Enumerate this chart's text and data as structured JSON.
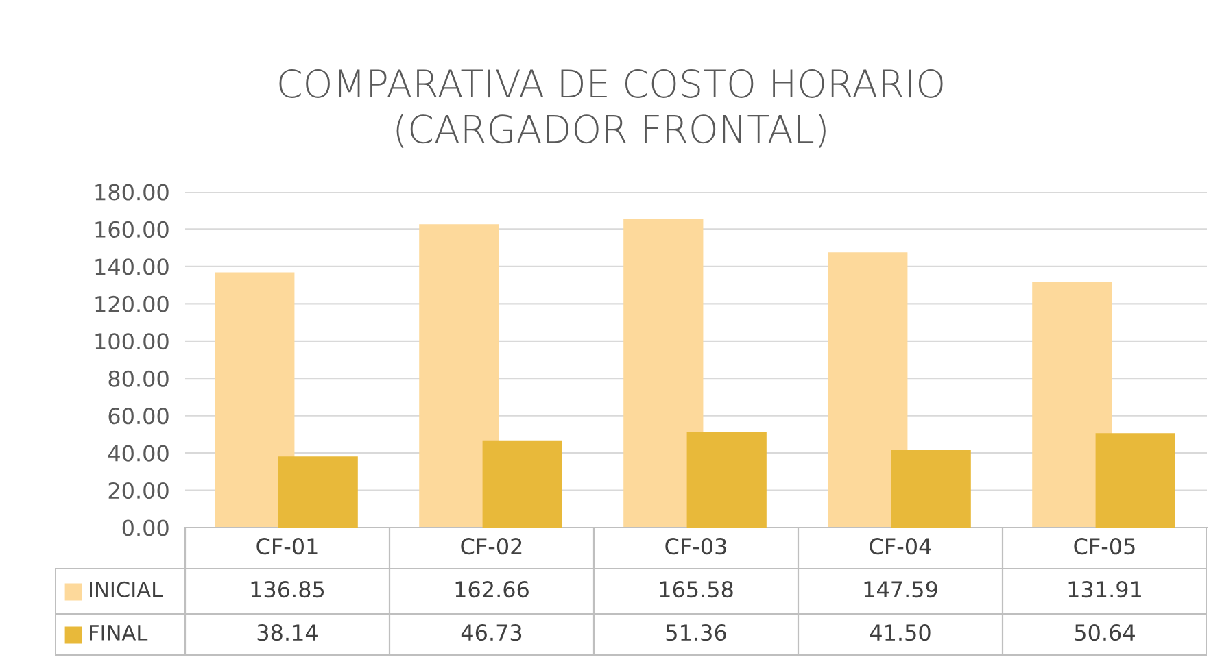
{
  "chart_data": {
    "type": "bar",
    "title": "COMPARATIVA DE COSTO HORARIO\n(CARGADOR FRONTAL)",
    "categories": [
      "CF-01",
      "CF-02",
      "CF-03",
      "CF-04",
      "CF-05"
    ],
    "series": [
      {
        "name": "INICIAL",
        "color": "#fdd99b",
        "values": [
          136.85,
          162.66,
          165.58,
          147.59,
          131.91
        ],
        "value_labels": [
          "136.85",
          "162.66",
          "165.58",
          "147.59",
          "131.91"
        ]
      },
      {
        "name": "FINAL",
        "color": "#e8b93a",
        "values": [
          38.14,
          46.73,
          51.36,
          41.5,
          50.64
        ],
        "value_labels": [
          "38.14",
          "46.73",
          "51.36",
          "41.50",
          "50.64"
        ]
      }
    ],
    "ylim": [
      0,
      180
    ],
    "yticks": [
      "0.00",
      "20.00",
      "40.00",
      "60.00",
      "80.00",
      "100.00",
      "120.00",
      "140.00",
      "160.00",
      "180.00"
    ],
    "grid": "y",
    "legend": "bottom left"
  }
}
